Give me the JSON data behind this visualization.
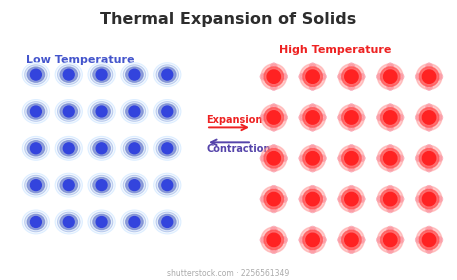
{
  "title": "Thermal Expansion of Solids",
  "title_color": "#2d2d2d",
  "title_fontsize": 11.5,
  "low_temp_label": "Low Temperature",
  "low_temp_color": "#4455cc",
  "high_temp_label": "High Temperature",
  "high_temp_color": "#ee2222",
  "expansion_label": "Expansion",
  "contraction_label": "Contraction",
  "arrow_color_expansion": "#ee2222",
  "arrow_color_contraction": "#5544aa",
  "bg_color": "#ffffff",
  "watermark": "shutterstock.com · 2256561349",
  "grid_rows": 5,
  "grid_cols": 5,
  "cold_atom_center": "#3344dd",
  "cold_atom_mid": "#6677cc",
  "cold_atom_ring1": "#99aadd",
  "cold_atom_ring2": "#bbccee",
  "cold_atom_outer": "#ddeeff",
  "cold_ring_edge": "#7788bb",
  "hot_atom_center": "#ff2222",
  "hot_atom_mid": "#ff5555",
  "hot_atom_ring": "#ff9999",
  "hot_petal_color": "#ffbbcc",
  "hot_petal_edge": "#ee6688"
}
